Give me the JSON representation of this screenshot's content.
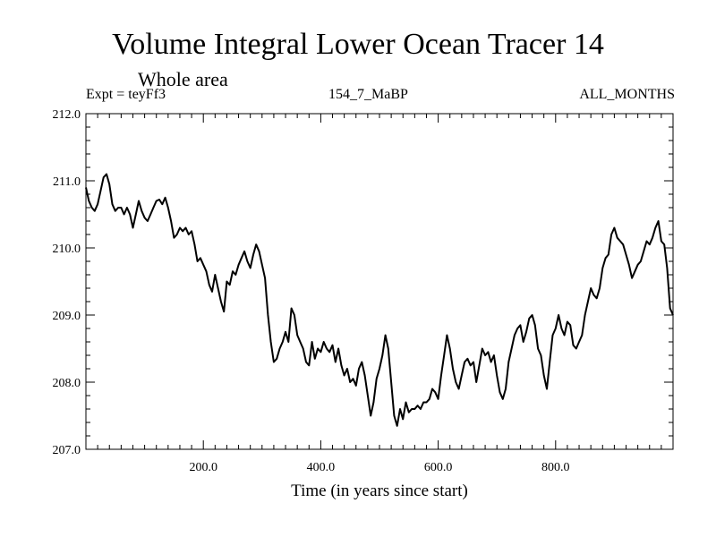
{
  "chart_data": {
    "type": "line",
    "title": "Volume Integral Lower Ocean Tracer 14",
    "subtitle": "Whole area",
    "expt_label": "Expt = teyFf3",
    "run_label": "154_7_MaBP",
    "months_label": "ALL_MONTHS",
    "xlabel": "Time (in years since start)",
    "ylabel": "",
    "xlim": [
      0,
      1000
    ],
    "ylim": [
      207.0,
      212.0
    ],
    "x_ticks": [
      200,
      400,
      600,
      800
    ],
    "x_tick_labels": [
      "200.0",
      "400.0",
      "600.0",
      "800.0"
    ],
    "y_ticks": [
      207.0,
      208.0,
      209.0,
      210.0,
      211.0,
      212.0
    ],
    "y_tick_labels": [
      "207.0",
      "208.0",
      "209.0",
      "210.0",
      "211.0",
      "212.0"
    ],
    "series": [
      {
        "name": "Volume Integral Lower Ocean Tracer 14",
        "color": "#000000",
        "x": [
          0,
          5,
          10,
          15,
          20,
          25,
          30,
          35,
          40,
          45,
          50,
          55,
          60,
          65,
          70,
          75,
          80,
          85,
          90,
          95,
          100,
          105,
          110,
          115,
          120,
          125,
          130,
          135,
          140,
          145,
          150,
          155,
          160,
          165,
          170,
          175,
          180,
          185,
          190,
          195,
          200,
          205,
          210,
          215,
          220,
          225,
          230,
          235,
          240,
          245,
          250,
          255,
          260,
          265,
          270,
          275,
          280,
          285,
          290,
          295,
          300,
          305,
          310,
          315,
          320,
          325,
          330,
          335,
          340,
          345,
          350,
          355,
          360,
          365,
          370,
          375,
          380,
          385,
          390,
          395,
          400,
          405,
          410,
          415,
          420,
          425,
          430,
          435,
          440,
          445,
          450,
          455,
          460,
          465,
          470,
          475,
          480,
          485,
          490,
          495,
          500,
          505,
          510,
          515,
          520,
          525,
          530,
          535,
          540,
          545,
          550,
          555,
          560,
          565,
          570,
          575,
          580,
          585,
          590,
          595,
          600,
          605,
          610,
          615,
          620,
          625,
          630,
          635,
          640,
          645,
          650,
          655,
          660,
          665,
          670,
          675,
          680,
          685,
          690,
          695,
          700,
          705,
          710,
          715,
          720,
          725,
          730,
          735,
          740,
          745,
          750,
          755,
          760,
          765,
          770,
          775,
          780,
          785,
          790,
          795,
          800,
          805,
          810,
          815,
          820,
          825,
          830,
          835,
          840,
          845,
          850,
          855,
          860,
          865,
          870,
          875,
          880,
          885,
          890,
          895,
          900,
          905,
          910,
          915,
          920,
          925,
          930,
          935,
          940,
          945,
          950,
          955,
          960,
          965,
          970,
          975,
          980,
          985,
          990,
          995,
          1000
        ],
        "values": [
          210.9,
          210.7,
          210.6,
          210.55,
          210.65,
          210.85,
          211.05,
          211.1,
          210.95,
          210.65,
          210.55,
          210.6,
          210.6,
          210.5,
          210.6,
          210.5,
          210.3,
          210.5,
          210.7,
          210.55,
          210.45,
          210.4,
          210.5,
          210.6,
          210.7,
          210.72,
          210.65,
          210.75,
          210.6,
          210.4,
          210.15,
          210.2,
          210.3,
          210.25,
          210.3,
          210.2,
          210.25,
          210.05,
          209.8,
          209.85,
          209.75,
          209.65,
          209.45,
          209.35,
          209.6,
          209.4,
          209.2,
          209.05,
          209.5,
          209.45,
          209.65,
          209.6,
          209.75,
          209.85,
          209.95,
          209.8,
          209.7,
          209.9,
          210.05,
          209.95,
          209.75,
          209.55,
          209.0,
          208.6,
          208.3,
          208.35,
          208.5,
          208.6,
          208.75,
          208.6,
          209.1,
          209.0,
          208.7,
          208.6,
          208.5,
          208.3,
          208.25,
          208.6,
          208.35,
          208.5,
          208.45,
          208.6,
          208.5,
          208.45,
          208.55,
          208.3,
          208.5,
          208.25,
          208.1,
          208.2,
          208.0,
          208.05,
          207.95,
          208.2,
          208.3,
          208.1,
          207.8,
          207.5,
          207.7,
          208.05,
          208.2,
          208.4,
          208.7,
          208.5,
          208.0,
          207.5,
          207.35,
          207.6,
          207.45,
          207.7,
          207.55,
          207.6,
          207.6,
          207.65,
          207.6,
          207.7,
          207.7,
          207.75,
          207.9,
          207.85,
          207.75,
          208.1,
          208.4,
          208.7,
          208.5,
          208.2,
          208.0,
          207.9,
          208.1,
          208.3,
          208.35,
          208.25,
          208.3,
          208.0,
          208.25,
          208.5,
          208.4,
          208.45,
          208.3,
          208.4,
          208.1,
          207.85,
          207.75,
          207.9,
          208.3,
          208.5,
          208.7,
          208.8,
          208.85,
          208.6,
          208.75,
          208.95,
          209.0,
          208.85,
          208.5,
          208.4,
          208.1,
          207.9,
          208.3,
          208.7,
          208.8,
          209.0,
          208.8,
          208.7,
          208.9,
          208.85,
          208.55,
          208.5,
          208.6,
          208.7,
          209.0,
          209.2,
          209.4,
          209.3,
          209.25,
          209.4,
          209.7,
          209.85,
          209.9,
          210.2,
          210.3,
          210.15,
          210.1,
          210.05,
          209.9,
          209.75,
          209.55,
          209.65,
          209.75,
          209.8,
          209.95,
          210.1,
          210.05,
          210.15,
          210.3,
          210.4,
          210.1,
          210.05,
          209.7,
          209.1,
          209.0
        ]
      }
    ]
  }
}
